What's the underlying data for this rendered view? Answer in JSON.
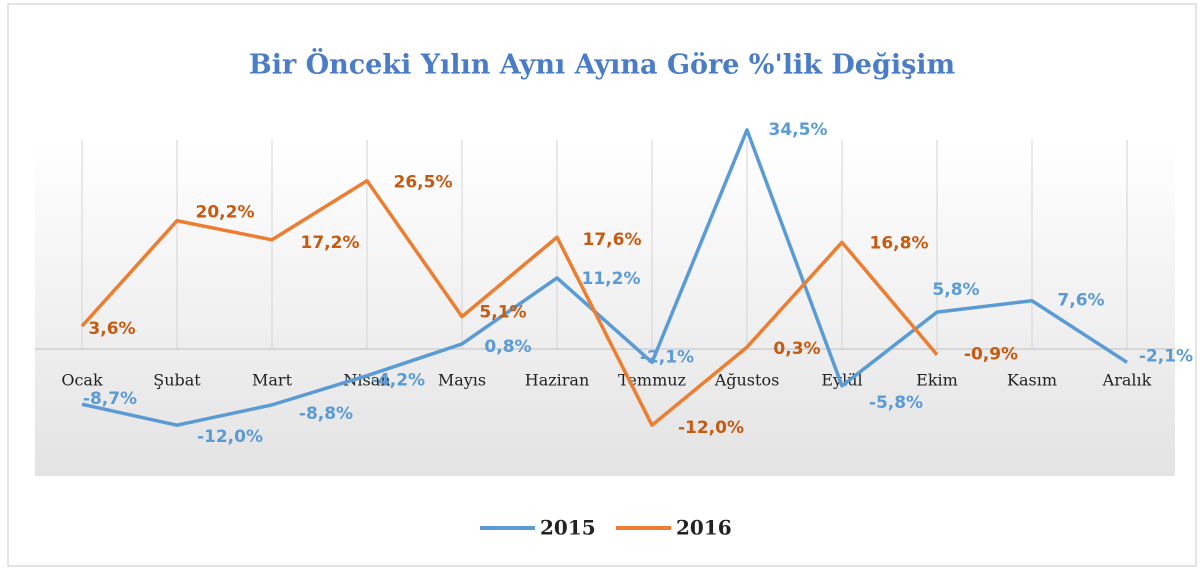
{
  "chart_data": {
    "type": "line",
    "title": "Bir Önceki Yılın Aynı Ayına Göre %'lik Değişim",
    "categories": [
      "Ocak",
      "Şubat",
      "Mart",
      "Nisan",
      "Mayıs",
      "Haziran",
      "Temmuz",
      "Ağustos",
      "Eylül",
      "Ekim",
      "Kasım",
      "Aralık"
    ],
    "ylim": [
      -20,
      40
    ],
    "legend": "bottom",
    "series": [
      {
        "name": "2015",
        "color": "#5b9bd5",
        "values": [
          -8.7,
          -12.0,
          -8.8,
          -4.2,
          0.8,
          11.2,
          -2.1,
          34.5,
          -5.8,
          5.8,
          7.6,
          -2.1
        ],
        "value_labels": [
          "-8,7%",
          "-12,0%",
          "-8,8%",
          "-4,2%",
          "0,8%",
          "11,2%",
          "-2,1%",
          "34,5%",
          "-5,8%",
          "5,8%",
          "7,6%",
          "-2,1%"
        ]
      },
      {
        "name": "2016",
        "color": "#ed7d31",
        "values": [
          3.6,
          20.2,
          17.2,
          26.5,
          5.1,
          17.6,
          -12.0,
          0.3,
          16.8,
          -0.9,
          null,
          null
        ],
        "value_labels": [
          "3,6%",
          "20,2%",
          "17,2%",
          "26,5%",
          "5,1%",
          "17,6%",
          "-12,0%",
          "0,3%",
          "16,8%",
          "-0,9%",
          null,
          null
        ]
      }
    ]
  }
}
